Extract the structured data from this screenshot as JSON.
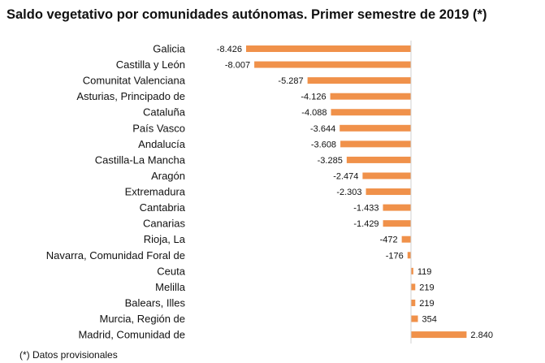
{
  "chart_data": {
    "type": "bar",
    "orientation": "horizontal",
    "title": "Saldo vegetativo por comunidades autónomas. Primer semestre de 2019 (*)",
    "footnote": "(*) Datos provisionales",
    "categories": [
      "Galicia",
      "Castilla y León",
      "Comunitat Valenciana",
      "Asturias, Principado de",
      "Cataluña",
      "País Vasco",
      "Andalucía",
      "Castilla-La Mancha",
      "Aragón",
      "Extremadura",
      "Cantabria",
      "Canarias",
      "Rioja, La",
      "Navarra, Comunidad Foral de",
      "Ceuta",
      "Melilla",
      "Balears, Illes",
      "Murcia, Región de",
      "Madrid, Comunidad de"
    ],
    "values": [
      -8426,
      -8007,
      -5287,
      -4126,
      -4088,
      -3644,
      -3608,
      -3285,
      -2474,
      -2303,
      -1433,
      -1429,
      -472,
      -176,
      119,
      219,
      219,
      354,
      2840
    ],
    "labels": [
      "-8.426",
      "-8.007",
      "-5.287",
      "-4.126",
      "-4.088",
      "-3.644",
      "-3.608",
      "-3.285",
      "-2.474",
      "-2.303",
      "-1.433",
      "-1.429",
      "-472",
      "-176",
      "119",
      "219",
      "219",
      "354",
      "2.840"
    ],
    "xlim": [
      -8426,
      2840
    ],
    "grid": false,
    "bar_color": "#F0914A"
  }
}
